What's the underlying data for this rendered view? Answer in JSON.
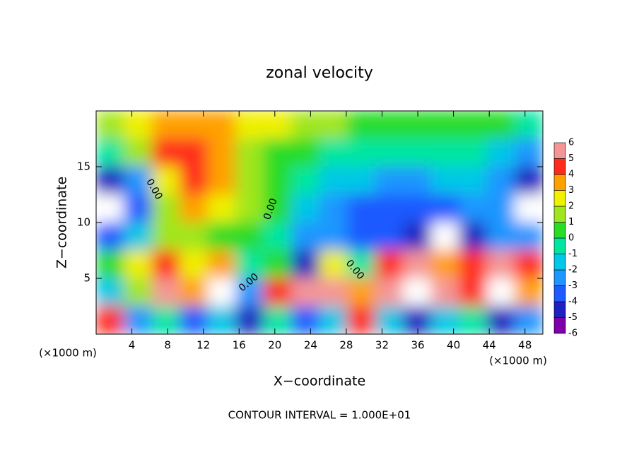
{
  "chart_data": {
    "type": "contour",
    "title": "zonal velocity",
    "x_label": "X−coordinate",
    "y_label": "Z−coordinate",
    "unit_label": "(×1000 m)",
    "footer": "CONTOUR INTERVAL = 1.000E+01",
    "contour_label": "0.00",
    "xlim": [
      0,
      50
    ],
    "ylim": [
      0,
      20
    ],
    "xticks": [
      4,
      8,
      12,
      16,
      20,
      24,
      28,
      32,
      36,
      40,
      44,
      48
    ],
    "yticks": [
      5,
      10,
      15
    ],
    "z": [
      [
        1,
        2,
        3,
        3,
        3,
        2.5,
        2,
        1.5,
        1,
        0.5,
        0.5,
        0.3,
        0.3,
        0.2,
        0,
        -0.5
      ],
      [
        -1,
        1,
        4,
        4.5,
        3,
        1.5,
        0.5,
        0,
        -0.5,
        -1,
        -1,
        -1,
        -1,
        -1,
        -1.5,
        -2.5
      ],
      [
        -5,
        -3,
        2,
        4.5,
        3.5,
        1,
        0,
        -1,
        -1.5,
        -2,
        -2.5,
        -2.5,
        -2,
        -2,
        -3,
        -5
      ],
      [
        -7,
        -4,
        1,
        3,
        2.5,
        1.5,
        0,
        -1.5,
        -2.5,
        -3.5,
        -4,
        -4,
        -3.5,
        -3,
        -3,
        -7
      ],
      [
        -4,
        -2,
        1,
        1.5,
        0.5,
        0,
        -1,
        -2.5,
        -3,
        -4,
        -3.5,
        -4.5,
        -7,
        -5,
        -3,
        -3
      ],
      [
        0,
        2,
        4,
        2,
        3.5,
        -0.5,
        0,
        -5,
        2,
        -1,
        4,
        5,
        3,
        4,
        5,
        4
      ],
      [
        -2,
        1,
        5,
        3,
        7,
        -3,
        4,
        5,
        6,
        3,
        5,
        7,
        5,
        4,
        7,
        3
      ],
      [
        4,
        -3,
        -1,
        -4,
        -2,
        -5,
        -1,
        -4,
        -2,
        4,
        -2,
        -5,
        -2,
        -1,
        -5,
        -3
      ]
    ],
    "colorbar": {
      "levels": [
        -6,
        -5,
        -4,
        -3,
        -2,
        -1,
        0,
        1,
        2,
        3,
        4,
        5,
        6
      ],
      "colors": [
        "#7f00a8",
        "#2020c0",
        "#1e5aff",
        "#1e96ff",
        "#00c8e6",
        "#00e6a0",
        "#28dc28",
        "#a0e61e",
        "#f0f000",
        "#ffa000",
        "#ff2a1e",
        "#f59696"
      ],
      "out_of_range_color": "#ffffff"
    }
  }
}
